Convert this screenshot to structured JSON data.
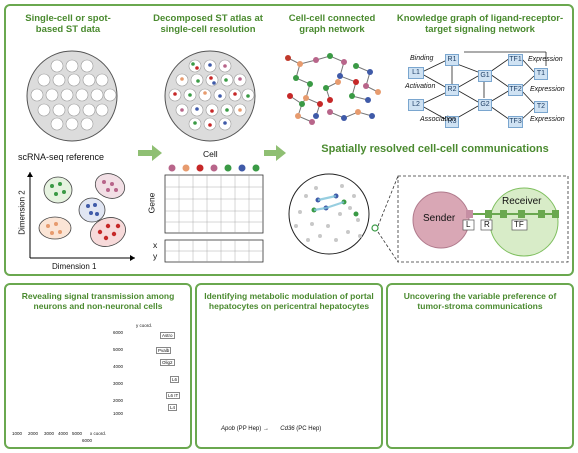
{
  "top": {
    "col1_title": "Single-cell or spot-based ST data",
    "col2_title": "Decomposed ST atlas at single-cell resolution",
    "col3_title": "Cell-cell connected graph network",
    "col4_title": "Knowledge graph of ligand-receptor-target signaling network",
    "scrna_label": "scRNA-seq reference",
    "dim1": "Dimension 1",
    "dim2": "Dimension 2",
    "cell_label": "Cell",
    "gene_label": "Gene",
    "x_label": "x",
    "y_label": "y",
    "spatial_title": "Spatially resolved cell-cell communications",
    "sender": "Sender",
    "receiver": "Receiver",
    "l_box": "L",
    "r_box": "R",
    "tf_box": "TF"
  },
  "kg": {
    "binding": "Binding",
    "activation": "Activation",
    "association": "Association",
    "expression": "Expression",
    "nodes": [
      "L1",
      "L2",
      "R1",
      "R2",
      "R3",
      "G1",
      "G2",
      "TF1",
      "TF2",
      "TF3",
      "T1",
      "T2"
    ]
  },
  "bottom": {
    "p1_title": "Revealing signal transmission among neurons and non-neuronal cells",
    "p2_title": "Identifying metabolic modulation of portal hepatocytes on pericentral hepatocytes",
    "p3_title": "Uncovering the variable preference of tumor-stroma communications",
    "p1_ycoord": "y coord.",
    "p1_xcoord": "x coord.",
    "p1_labels": [
      "Astro",
      "Pvalb",
      "Olig2",
      "L6",
      "L6 IT",
      "L4"
    ],
    "p1_yticks": [
      "6000",
      "5000",
      "4000",
      "3000",
      "2000",
      "1000"
    ],
    "p1_xticks": [
      "1000",
      "2000",
      "3000",
      "4000",
      "5000",
      "6000"
    ],
    "p2_legend_a": "Apob",
    "p2_legend_a_note": "(PP Hep)",
    "p2_arrow": "→",
    "p2_legend_b": "Cd36",
    "p2_legend_b_note": "(PC Hep)"
  },
  "colors": {
    "panel_border": "#6aa84f",
    "title_green": "#4a8a2f",
    "arrow_green": "#8fbf73",
    "sender": "#d9a7b5",
    "receiver": "#d8ecc8"
  }
}
